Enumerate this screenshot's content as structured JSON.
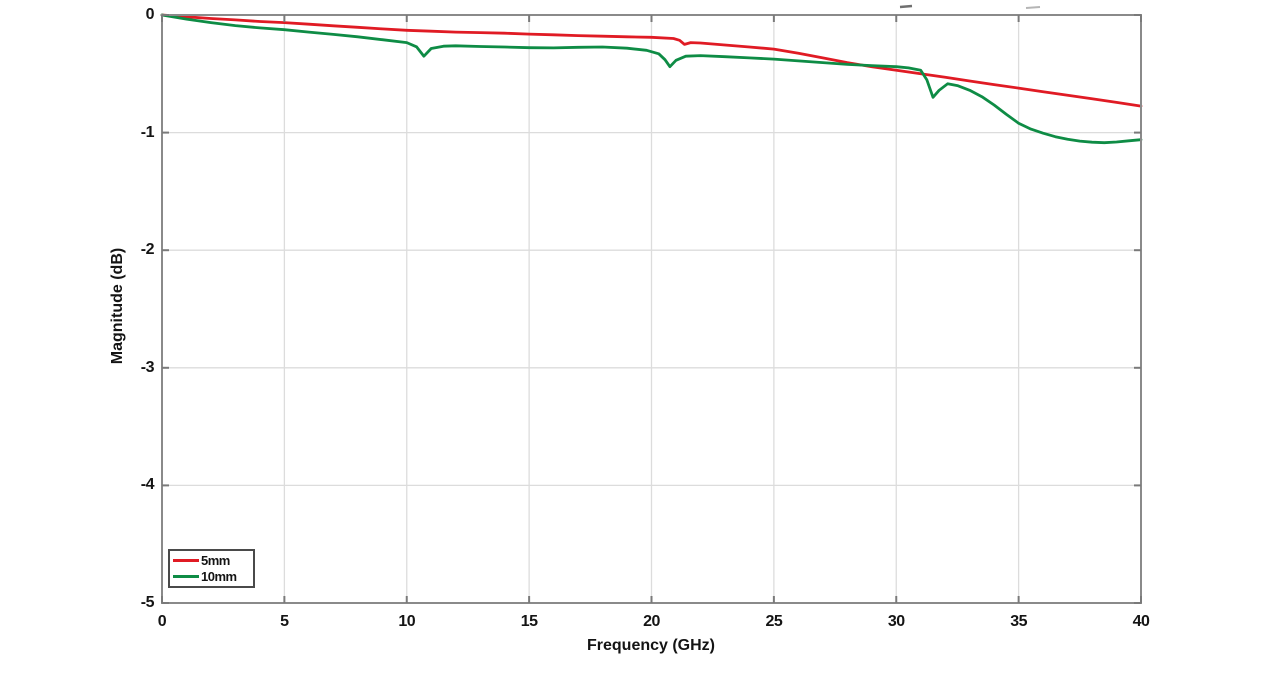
{
  "chart_data": {
    "type": "line",
    "title": "",
    "xlabel": "Frequency (GHz)",
    "ylabel": "Magnitude (dB)",
    "xlim": [
      0,
      40
    ],
    "ylim": [
      -5,
      0
    ],
    "grid": true,
    "legend_position": "bottom-left",
    "x_ticks": {
      "values": [
        0,
        5,
        10,
        15,
        20,
        25,
        30,
        35,
        40
      ],
      "labels": [
        "0",
        "5",
        "10",
        "15",
        "20",
        "25",
        "30",
        "35",
        "40"
      ]
    },
    "y_ticks": {
      "values": [
        0,
        -1,
        -2,
        -3,
        -4,
        -5
      ],
      "labels": [
        "0",
        "-1",
        "-2",
        "-3",
        "-4",
        "-5"
      ]
    },
    "series": [
      {
        "name": "5mm",
        "color": "#e01b24",
        "points": [
          [
            0,
            0
          ],
          [
            1,
            -0.015
          ],
          [
            2,
            -0.03
          ],
          [
            3,
            -0.042
          ],
          [
            4,
            -0.055
          ],
          [
            5,
            -0.065
          ],
          [
            6,
            -0.078
          ],
          [
            7,
            -0.092
          ],
          [
            8,
            -0.105
          ],
          [
            9,
            -0.118
          ],
          [
            10,
            -0.13
          ],
          [
            11,
            -0.138
          ],
          [
            12,
            -0.145
          ],
          [
            13,
            -0.15
          ],
          [
            14,
            -0.155
          ],
          [
            15,
            -0.162
          ],
          [
            16,
            -0.168
          ],
          [
            17,
            -0.175
          ],
          [
            18,
            -0.18
          ],
          [
            19,
            -0.185
          ],
          [
            20,
            -0.19
          ],
          [
            20.9,
            -0.2
          ],
          [
            21.15,
            -0.215
          ],
          [
            21.35,
            -0.25
          ],
          [
            21.6,
            -0.235
          ],
          [
            22,
            -0.238
          ],
          [
            23,
            -0.255
          ],
          [
            24,
            -0.272
          ],
          [
            25,
            -0.29
          ],
          [
            26,
            -0.325
          ],
          [
            27,
            -0.365
          ],
          [
            28,
            -0.405
          ],
          [
            29,
            -0.44
          ],
          [
            30,
            -0.47
          ],
          [
            31,
            -0.5
          ],
          [
            32,
            -0.53
          ],
          [
            33,
            -0.561
          ],
          [
            34,
            -0.592
          ],
          [
            35,
            -0.622
          ],
          [
            36,
            -0.652
          ],
          [
            37,
            -0.682
          ],
          [
            38,
            -0.712
          ],
          [
            39,
            -0.743
          ],
          [
            40,
            -0.775
          ]
        ]
      },
      {
        "name": "10mm",
        "color": "#0e8c45",
        "points": [
          [
            0,
            0
          ],
          [
            1,
            -0.035
          ],
          [
            2,
            -0.065
          ],
          [
            3,
            -0.09
          ],
          [
            4,
            -0.11
          ],
          [
            5,
            -0.125
          ],
          [
            6,
            -0.145
          ],
          [
            7,
            -0.165
          ],
          [
            8,
            -0.185
          ],
          [
            9,
            -0.21
          ],
          [
            10,
            -0.235
          ],
          [
            10.4,
            -0.27
          ],
          [
            10.7,
            -0.35
          ],
          [
            11,
            -0.285
          ],
          [
            11.5,
            -0.265
          ],
          [
            12,
            -0.262
          ],
          [
            13,
            -0.268
          ],
          [
            14,
            -0.272
          ],
          [
            15,
            -0.278
          ],
          [
            16,
            -0.28
          ],
          [
            17,
            -0.275
          ],
          [
            18,
            -0.272
          ],
          [
            19,
            -0.282
          ],
          [
            19.8,
            -0.3
          ],
          [
            20.3,
            -0.33
          ],
          [
            20.55,
            -0.38
          ],
          [
            20.75,
            -0.44
          ],
          [
            21,
            -0.385
          ],
          [
            21.4,
            -0.35
          ],
          [
            22,
            -0.345
          ],
          [
            23,
            -0.355
          ],
          [
            24,
            -0.365
          ],
          [
            25,
            -0.375
          ],
          [
            26,
            -0.39
          ],
          [
            27,
            -0.405
          ],
          [
            28,
            -0.42
          ],
          [
            28.5,
            -0.425
          ],
          [
            29,
            -0.43
          ],
          [
            30,
            -0.44
          ],
          [
            30.5,
            -0.45
          ],
          [
            31,
            -0.47
          ],
          [
            31.25,
            -0.55
          ],
          [
            31.5,
            -0.7
          ],
          [
            31.75,
            -0.64
          ],
          [
            32.1,
            -0.585
          ],
          [
            32.5,
            -0.6
          ],
          [
            33,
            -0.64
          ],
          [
            33.5,
            -0.695
          ],
          [
            34,
            -0.765
          ],
          [
            34.5,
            -0.845
          ],
          [
            35,
            -0.92
          ],
          [
            35.5,
            -0.97
          ],
          [
            36,
            -1.005
          ],
          [
            36.5,
            -1.035
          ],
          [
            37,
            -1.057
          ],
          [
            37.5,
            -1.072
          ],
          [
            38,
            -1.082
          ],
          [
            38.5,
            -1.086
          ],
          [
            39,
            -1.08
          ],
          [
            39.5,
            -1.07
          ],
          [
            40,
            -1.06
          ]
        ]
      }
    ],
    "colors": {
      "axis_border": "#8a8a8a",
      "gridline": "#dcdcdc",
      "tick": "#7a7a7a",
      "text": "#141414",
      "legend_border": "#4a4a4a",
      "background": "#ffffff"
    }
  }
}
